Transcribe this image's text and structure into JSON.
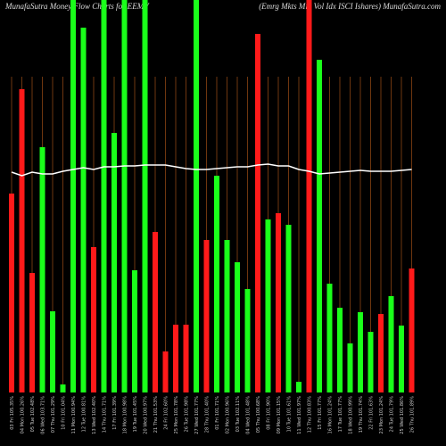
{
  "chart_data": {
    "type": "bar",
    "title": "MunafaSutra  Money Flow  Charts for EEMV",
    "subtitle": "(Emrg Mkts Min  Vol Idx  ISCI Ishares) MunafaSutra.com",
    "categories": [
      "03 Fri 105.35%",
      "04 Mon 100.26%",
      "05 Tue 102.48%",
      "06 Wed 103.71%",
      "07 Thu 101.29%",
      "10 Fri 101.04%",
      "11 Mon 100.94%",
      "12 Tue 100.81%",
      "13 Wed 102.40%",
      "14 Thu 101.71%",
      "17 Fri 101.39%",
      "18 Mon 100.98%",
      "19 Tue 101.45%",
      "20 Wed 100.97%",
      "21 Thu 101.53%",
      "24 Fri 102.60%",
      "25 Mon 101.78%",
      "26 Tue 101.98%",
      "27 Wed 101.77%",
      "28 Thu 101.40%",
      "01 Fri 101.71%",
      "02 Mon 100.96%",
      "03 Tue 102.11%",
      "04 Wed 101.48%",
      "05 Thu 100.68%",
      "08 Fri 101.90%",
      "09 Mon 101.15%",
      "10 Tue 101.61%",
      "11 Wed 101.97%",
      "12 Thu 100.83%",
      "15 Fri 101.77%",
      "16 Mon 101.24%",
      "17 Tue 101.77%",
      "18 Wed 100.99%",
      "19 Thu 101.74%",
      "22 Fri 101.63%",
      "23 Mon 101.24%",
      "24 Tue 101.79%",
      "25 Wed 101.86%",
      "26 Thu 101.89%"
    ],
    "values": [
      223,
      340,
      134,
      275,
      91,
      9,
      440,
      409,
      163,
      440,
      291,
      440,
      137,
      440,
      180,
      46,
      76,
      76,
      440,
      171,
      243,
      171,
      146,
      116,
      402,
      194,
      201,
      188,
      12,
      440,
      373,
      122,
      95,
      55,
      90,
      68,
      88,
      108,
      75,
      139
    ],
    "colors": [
      "#ff1a1a",
      "#ff1a1a",
      "#ff1a1a",
      "#1aff1a",
      "#1aff1a",
      "#1aff1a",
      "#1aff1a",
      "#1aff1a",
      "#ff1a1a",
      "#1aff1a",
      "#1aff1a",
      "#1aff1a",
      "#1aff1a",
      "#1aff1a",
      "#ff1a1a",
      "#ff1a1a",
      "#ff1a1a",
      "#ff1a1a",
      "#1aff1a",
      "#ff1a1a",
      "#1aff1a",
      "#1aff1a",
      "#1aff1a",
      "#1aff1a",
      "#ff1a1a",
      "#1aff1a",
      "#ff1a1a",
      "#1aff1a",
      "#1aff1a",
      "#ff1a1a",
      "#1aff1a",
      "#1aff1a",
      "#1aff1a",
      "#1aff1a",
      "#1aff1a",
      "#1aff1a",
      "#ff1a1a",
      "#1aff1a",
      "#1aff1a",
      "#ff1a1a"
    ],
    "line": {
      "color": "#ffffff",
      "values": [
        247,
        243,
        247,
        245,
        245,
        248,
        250,
        252,
        250,
        253,
        253,
        254,
        254,
        255,
        255,
        255,
        253,
        251,
        250,
        250,
        251,
        252,
        253,
        253,
        255,
        256,
        254,
        254,
        250,
        248,
        245,
        246,
        247,
        248,
        249,
        248,
        248,
        248,
        249,
        250
      ]
    },
    "ylim": [
      0,
      440
    ]
  }
}
